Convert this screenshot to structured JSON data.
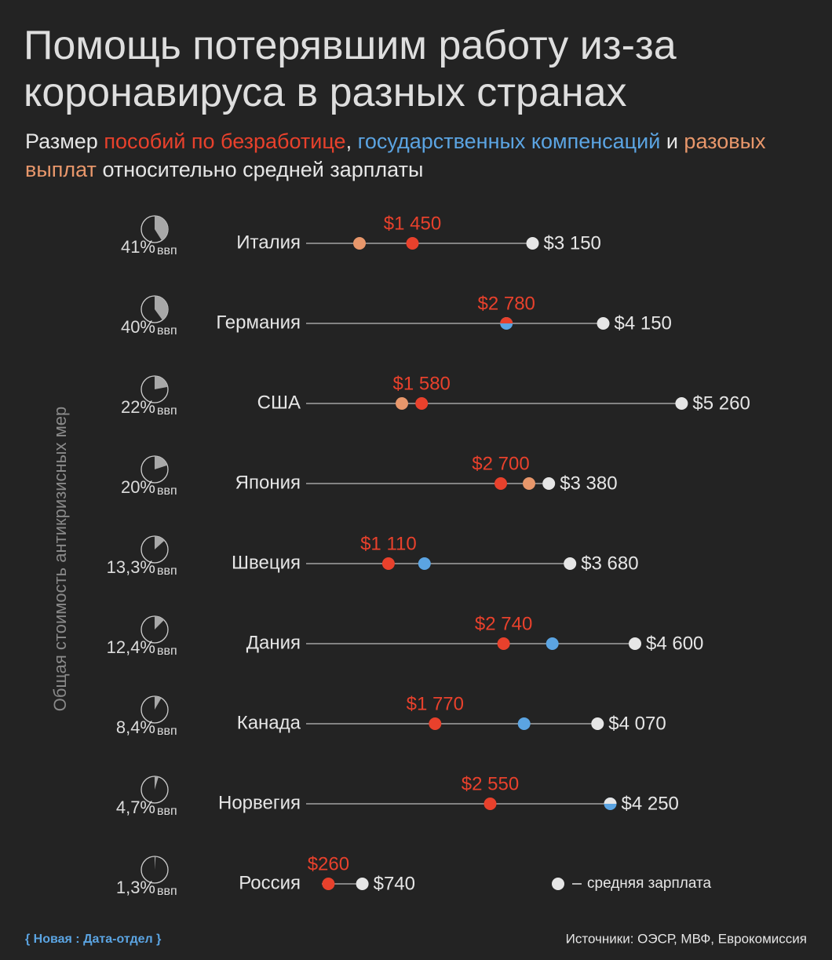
{
  "chart_data": {
    "type": "dot",
    "title": "Помощь потерявшим работу из-за коронавируса в разных странах",
    "subtitle_parts": [
      "Размер",
      ",",
      "и",
      "относительно средней зарплаты"
    ],
    "y_axis_label": "Общая стоимость антикризисных мер",
    "categories": [
      "Италия",
      "Германия",
      "США",
      "Япония",
      "Швеция",
      "Дания",
      "Канада",
      "Норвегия",
      "Россия"
    ],
    "gdp_share": [
      41,
      40,
      22,
      20,
      13.3,
      12.4,
      8.4,
      4.7,
      1.3
    ],
    "gdp_share_labels": [
      "41%",
      "40%",
      "22%",
      "20%",
      "13,3%",
      "12,4%",
      "8,4%",
      "4,7%",
      "1,3%"
    ],
    "gdp_unit": "ввп",
    "xlim": [
      0,
      5500
    ],
    "series": [
      {
        "name": "пособий по безработице",
        "color": "#e8412c",
        "values": [
          1450,
          2780,
          1580,
          2700,
          1110,
          2740,
          1770,
          2550,
          260
        ],
        "value_labels": [
          "$1 450",
          "$2 780",
          "$1 580",
          "$2 700",
          "$1 110",
          "$2 740",
          "$1 770",
          "$2 550",
          "$260"
        ]
      },
      {
        "name": "государственных компенсаций",
        "color": "#5ba4e2",
        "values": [
          null,
          2780,
          null,
          null,
          1620,
          3430,
          3030,
          4250,
          null
        ]
      },
      {
        "name": "разовых выплат",
        "color": "#e8976b",
        "values": [
          700,
          null,
          1300,
          3100,
          null,
          null,
          null,
          null,
          null
        ]
      },
      {
        "name": "средняя зарплата",
        "color": "#e6e6e6",
        "values": [
          3150,
          4150,
          5260,
          3380,
          3680,
          4600,
          4070,
          4250,
          740
        ],
        "value_labels": [
          "$3 150",
          "$4 150",
          "$5 260",
          "$3 380",
          "$3 680",
          "$4 600",
          "$4 070",
          "$4 250",
          "$740"
        ]
      }
    ],
    "footer_left": "{ Новая : Дата-отдел }",
    "source": "Источники: ОЭСР, МВФ, Еврокомиссия"
  }
}
